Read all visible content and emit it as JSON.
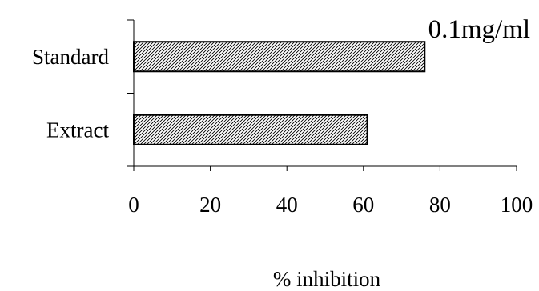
{
  "chart_data": {
    "type": "bar",
    "orientation": "horizontal",
    "categories": [
      "Standard",
      "Extract"
    ],
    "values": [
      76,
      61
    ],
    "title": "",
    "annotation": "0.1mg/ml",
    "xlabel": "% inhibition",
    "ylabel": "",
    "xlim": [
      0,
      100
    ],
    "xticks": [
      0,
      20,
      40,
      60,
      80,
      100
    ],
    "grid": false,
    "legend": "none",
    "bar_fill": "diagonal-hatch",
    "bar_color": "#000000",
    "background": "#ffffff"
  }
}
